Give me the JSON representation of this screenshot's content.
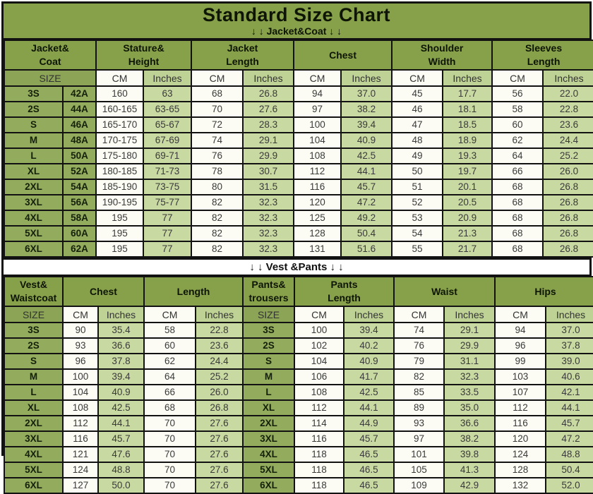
{
  "title": "Standard Size Chart",
  "labels": {
    "size": "SIZE",
    "cm": "CM",
    "inches": "Inches"
  },
  "colors": {
    "olive_header": "#87A04A",
    "olive_size_cell": "#93AB5C",
    "light_green_cell": "#C9D9A2",
    "inches_header_green": "#BFD295",
    "border_black": "#121212",
    "white_cell": "#FCFCF4"
  },
  "jacket_section": {
    "banner": "↓ ↓  Jacket&Coat ↓ ↓",
    "headers": [
      "Jacket&\nCoat",
      "Stature&\nHeight",
      "Jacket\nLength",
      "Chest",
      "Shoulder\nWidth",
      "Sleeves\nLength"
    ],
    "rows": [
      [
        "3S",
        "42A",
        "160",
        "63",
        "68",
        "26.8",
        "94",
        "37.0",
        "45",
        "17.7",
        "56",
        "22.0"
      ],
      [
        "2S",
        "44A",
        "160-165",
        "63-65",
        "70",
        "27.6",
        "97",
        "38.2",
        "46",
        "18.1",
        "58",
        "22.8"
      ],
      [
        "S",
        "46A",
        "165-170",
        "65-67",
        "72",
        "28.3",
        "100",
        "39.4",
        "47",
        "18.5",
        "60",
        "23.6"
      ],
      [
        "M",
        "48A",
        "170-175",
        "67-69",
        "74",
        "29.1",
        "104",
        "40.9",
        "48",
        "18.9",
        "62",
        "24.4"
      ],
      [
        "L",
        "50A",
        "175-180",
        "69-71",
        "76",
        "29.9",
        "108",
        "42.5",
        "49",
        "19.3",
        "64",
        "25.2"
      ],
      [
        "XL",
        "52A",
        "180-185",
        "71-73",
        "78",
        "30.7",
        "112",
        "44.1",
        "50",
        "19.7",
        "66",
        "26.0"
      ],
      [
        "2XL",
        "54A",
        "185-190",
        "73-75",
        "80",
        "31.5",
        "116",
        "45.7",
        "51",
        "20.1",
        "68",
        "26.8"
      ],
      [
        "3XL",
        "56A",
        "190-195",
        "75-77",
        "82",
        "32.3",
        "120",
        "47.2",
        "52",
        "20.5",
        "68",
        "26.8"
      ],
      [
        "4XL",
        "58A",
        "195",
        "77",
        "82",
        "32.3",
        "125",
        "49.2",
        "53",
        "20.9",
        "68",
        "26.8"
      ],
      [
        "5XL",
        "60A",
        "195",
        "77",
        "82",
        "32.3",
        "128",
        "50.4",
        "54",
        "21.3",
        "68",
        "26.8"
      ],
      [
        "6XL",
        "62A",
        "195",
        "77",
        "82",
        "32.3",
        "131",
        "51.6",
        "55",
        "21.7",
        "68",
        "26.8"
      ]
    ]
  },
  "vest_pants_section": {
    "banner": "↓ ↓  Vest &Pants ↓ ↓",
    "headers": [
      "Vest&\nWaistcoat",
      "Chest",
      "Length",
      "Pants&\ntrousers",
      "Pants\nLength",
      "Waist",
      "Hips"
    ],
    "rows": [
      [
        "3S",
        "90",
        "35.4",
        "58",
        "22.8",
        "3S",
        "100",
        "39.4",
        "74",
        "29.1",
        "94",
        "37.0"
      ],
      [
        "2S",
        "93",
        "36.6",
        "60",
        "23.6",
        "2S",
        "102",
        "40.2",
        "76",
        "29.9",
        "96",
        "37.8"
      ],
      [
        "S",
        "96",
        "37.8",
        "62",
        "24.4",
        "S",
        "104",
        "40.9",
        "79",
        "31.1",
        "99",
        "39.0"
      ],
      [
        "M",
        "100",
        "39.4",
        "64",
        "25.2",
        "M",
        "106",
        "41.7",
        "82",
        "32.3",
        "103",
        "40.6"
      ],
      [
        "L",
        "104",
        "40.9",
        "66",
        "26.0",
        "L",
        "108",
        "42.5",
        "85",
        "33.5",
        "107",
        "42.1"
      ],
      [
        "XL",
        "108",
        "42.5",
        "68",
        "26.8",
        "XL",
        "112",
        "44.1",
        "89",
        "35.0",
        "112",
        "44.1"
      ],
      [
        "2XL",
        "112",
        "44.1",
        "70",
        "27.6",
        "2XL",
        "114",
        "44.9",
        "93",
        "36.6",
        "116",
        "45.7"
      ],
      [
        "3XL",
        "116",
        "45.7",
        "70",
        "27.6",
        "3XL",
        "116",
        "45.7",
        "97",
        "38.2",
        "120",
        "47.2"
      ],
      [
        "4XL",
        "121",
        "47.6",
        "70",
        "27.6",
        "4XL",
        "118",
        "46.5",
        "101",
        "39.8",
        "124",
        "48.8"
      ],
      [
        "5XL",
        "124",
        "48.8",
        "70",
        "27.6",
        "5XL",
        "118",
        "46.5",
        "105",
        "41.3",
        "128",
        "50.4"
      ],
      [
        "6XL",
        "127",
        "50.0",
        "70",
        "27.6",
        "6XL",
        "118",
        "46.5",
        "109",
        "42.9",
        "132",
        "52.0"
      ]
    ]
  }
}
